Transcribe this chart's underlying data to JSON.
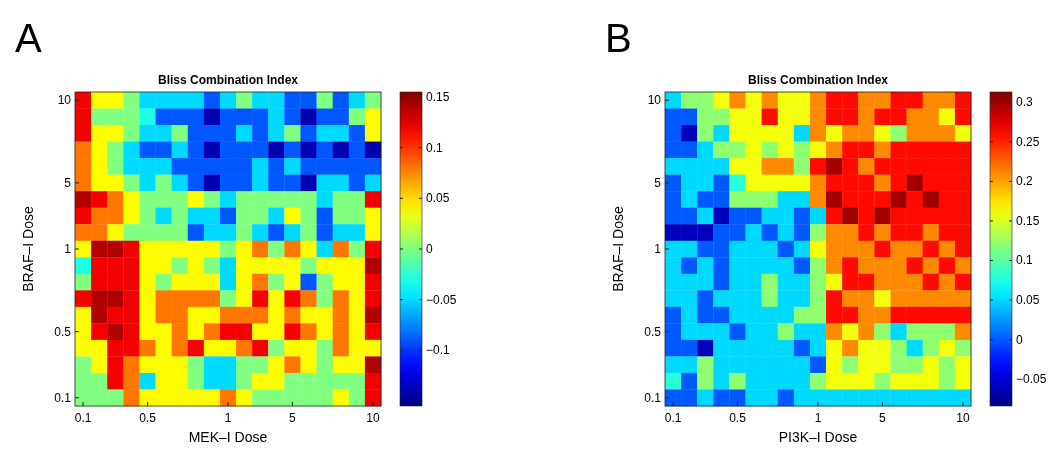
{
  "chart_data": [
    {
      "type": "heatmap",
      "title": "Bliss Combination Index",
      "xlabel": "MEK–I Dose",
      "ylabel": "BRAF–I Dose",
      "annotations": [
        "A"
      ],
      "categories": [
        "0.1",
        null,
        null,
        null,
        "0.5",
        null,
        null,
        null,
        null,
        "1",
        null,
        null,
        null,
        "5",
        null,
        null,
        null,
        null,
        "10"
      ],
      "y_categories": [
        "10",
        null,
        null,
        null,
        null,
        "5",
        null,
        null,
        null,
        "1",
        null,
        null,
        null,
        null,
        "0.5",
        null,
        null,
        null,
        "0.1"
      ],
      "clim": [
        -0.155,
        0.155
      ],
      "cticks": [
        -0.1,
        -0.05,
        0,
        0.05,
        0.1,
        0.15
      ],
      "cells": [
        [
          0.12,
          0.04,
          0.04,
          0,
          -0.05,
          -0.05,
          -0.05,
          -0.05,
          -0.09,
          -0.05,
          0,
          -0.05,
          -0.05,
          -0.09,
          -0.09,
          0,
          -0.09,
          -0.05,
          0
        ],
        [
          0.12,
          0,
          0,
          0,
          -0.03,
          -0.09,
          -0.09,
          -0.09,
          -0.14,
          -0.09,
          -0.09,
          -0.09,
          -0.05,
          -0.09,
          -0.14,
          -0.09,
          -0.09,
          0,
          0.04
        ],
        [
          0.12,
          0.04,
          0.04,
          0,
          -0.05,
          -0.05,
          0,
          -0.09,
          -0.09,
          -0.09,
          -0.05,
          -0.09,
          -0.05,
          0,
          -0.09,
          -0.05,
          -0.05,
          -0.09,
          0.04
        ],
        [
          0.08,
          0.04,
          0,
          -0.05,
          -0.09,
          -0.09,
          -0.05,
          -0.09,
          -0.14,
          -0.09,
          -0.09,
          -0.09,
          -0.14,
          -0.09,
          -0.14,
          -0.09,
          -0.14,
          -0.09,
          -0.14
        ],
        [
          0.08,
          0.04,
          0,
          -0.05,
          -0.05,
          -0.05,
          -0.09,
          -0.09,
          -0.09,
          -0.09,
          -0.09,
          -0.05,
          -0.09,
          -0.05,
          -0.09,
          -0.09,
          -0.09,
          -0.09,
          -0.09
        ],
        [
          0.08,
          0.04,
          0.04,
          0,
          -0.05,
          0,
          -0.05,
          -0.09,
          -0.14,
          -0.09,
          -0.09,
          -0.05,
          -0.09,
          -0.09,
          -0.14,
          -0.05,
          -0.05,
          -0.09,
          -0.05
        ],
        [
          0.14,
          0.12,
          0.08,
          0.04,
          0,
          0,
          0,
          0.04,
          0,
          -0.05,
          0,
          0,
          0,
          0,
          0,
          -0.05,
          0,
          0,
          0.12
        ],
        [
          0.12,
          0.08,
          0.08,
          0.04,
          0,
          -0.05,
          0,
          -0.05,
          -0.05,
          -0.09,
          0,
          0,
          -0.05,
          0.04,
          0,
          -0.09,
          0,
          0,
          0.04
        ],
        [
          0.08,
          0.08,
          0.04,
          0,
          0,
          0,
          0,
          -0.09,
          -0.05,
          -0.05,
          0,
          -0.05,
          -0.09,
          -0.05,
          0,
          -0.09,
          -0.05,
          -0.05,
          0.04
        ],
        [
          0.04,
          0.14,
          0.14,
          0.12,
          0.04,
          0.04,
          0.04,
          0.04,
          0.04,
          0,
          0.04,
          0.08,
          0,
          0.08,
          0.04,
          -0.05,
          0.08,
          0,
          0.12
        ],
        [
          -0.03,
          0.12,
          0.12,
          0.12,
          0.04,
          0.04,
          0,
          0.04,
          0,
          -0.05,
          0.04,
          0.04,
          0.04,
          0.04,
          0,
          0.04,
          0.04,
          0.04,
          0.14
        ],
        [
          0,
          0.12,
          0.12,
          0.12,
          0.04,
          0,
          0.04,
          0.04,
          0.04,
          -0.05,
          0.04,
          0.08,
          0,
          0.04,
          -0.09,
          0,
          0.04,
          0.04,
          0.12
        ],
        [
          0.12,
          0.14,
          0.14,
          0.12,
          0.04,
          0.08,
          0.08,
          0.08,
          0.08,
          0,
          0.04,
          0.12,
          0.04,
          0.12,
          0.08,
          0,
          0.08,
          0.04,
          0.12
        ],
        [
          0.04,
          0.14,
          0.12,
          0.12,
          0.04,
          0.08,
          0.08,
          0.04,
          0.04,
          0.08,
          0.08,
          0.08,
          0.04,
          0.08,
          0.04,
          0.04,
          0.08,
          0.04,
          0.14
        ],
        [
          0.04,
          0.12,
          0.14,
          0.12,
          0.04,
          0.04,
          0.08,
          0.04,
          0.08,
          0.12,
          0.12,
          0.04,
          0.04,
          0.12,
          0.08,
          0.04,
          0.08,
          0.04,
          0.12
        ],
        [
          0.04,
          0.04,
          0.12,
          0.12,
          0.08,
          0.04,
          0.08,
          0.12,
          0.04,
          0.04,
          0.08,
          0.12,
          0,
          0.04,
          0.04,
          0,
          0.08,
          0.04,
          0.04
        ],
        [
          0,
          0.04,
          0.12,
          0.08,
          0.04,
          0.04,
          0.04,
          0,
          -0.05,
          -0.05,
          0,
          0,
          0.04,
          0.08,
          0.04,
          0,
          0.04,
          0.04,
          0.14
        ],
        [
          0,
          0,
          0.12,
          0.08,
          -0.05,
          0.04,
          0.04,
          0,
          -0.05,
          -0.05,
          0,
          0.04,
          0.04,
          0,
          0,
          0,
          0,
          0,
          0.12
        ],
        [
          0,
          0,
          0,
          0.08,
          0.04,
          0.04,
          0.04,
          0.04,
          0.04,
          0.08,
          0.04,
          0,
          0,
          0,
          0,
          0,
          0.04,
          0,
          0.12
        ]
      ]
    },
    {
      "type": "heatmap",
      "title": "Bliss Combination Index",
      "xlabel": "PI3K–I Dose",
      "ylabel": "BRAF–I Dose",
      "annotations": [
        "B"
      ],
      "categories": [
        "0.1",
        null,
        null,
        null,
        "0.5",
        null,
        null,
        null,
        null,
        "1",
        null,
        null,
        null,
        "5",
        null,
        null,
        null,
        null,
        "10"
      ],
      "y_categories": [
        "10",
        null,
        null,
        null,
        null,
        "5",
        null,
        null,
        null,
        "1",
        null,
        null,
        null,
        null,
        "0.5",
        null,
        null,
        null,
        "0.1"
      ],
      "clim": [
        -0.084,
        0.313
      ],
      "cticks": [
        -0.05,
        0,
        0.05,
        0.1,
        0.15,
        0.2,
        0.25,
        0.3
      ],
      "cells": [
        [
          0.05,
          0.12,
          0.12,
          0.16,
          0.21,
          0.16,
          0.21,
          0.16,
          0.16,
          0.21,
          0.26,
          0.26,
          0.21,
          0.21,
          0.26,
          0.26,
          0.21,
          0.21,
          0.26
        ],
        [
          0,
          0,
          0.12,
          0.12,
          0.16,
          0.16,
          0.26,
          0.16,
          0.16,
          0.21,
          0.26,
          0.26,
          0.21,
          0.26,
          0.26,
          0.21,
          0.21,
          0.16,
          0.26
        ],
        [
          0,
          -0.06,
          0.12,
          0.05,
          0.16,
          0.16,
          0.16,
          0.16,
          0.05,
          0.21,
          0.16,
          0.21,
          0.21,
          0.16,
          0.12,
          0.21,
          0.21,
          0.21,
          0.16
        ],
        [
          0,
          0,
          0.05,
          0.12,
          0.12,
          0.16,
          0.12,
          0.16,
          0.12,
          0.16,
          0.21,
          0.26,
          0.26,
          0.21,
          0.26,
          0.26,
          0.26,
          0.26,
          0.26
        ],
        [
          0.05,
          0.05,
          0.05,
          0.05,
          0.16,
          0.16,
          0.21,
          0.21,
          0.12,
          0.26,
          0.3,
          0.26,
          0.21,
          0.26,
          0.26,
          0.26,
          0.26,
          0.26,
          0.26
        ],
        [
          0,
          0.05,
          0.05,
          0,
          0.08,
          0.16,
          0.16,
          0.16,
          0.16,
          0.21,
          0.26,
          0.26,
          0.26,
          0.21,
          0.26,
          0.3,
          0.26,
          0.26,
          0.26
        ],
        [
          0,
          0.05,
          0,
          0,
          0.12,
          0.12,
          0.12,
          0.05,
          0.05,
          0.21,
          0.3,
          0.26,
          0.26,
          0.26,
          0.3,
          0.26,
          0.3,
          0.26,
          0.26
        ],
        [
          0,
          0,
          0.05,
          -0.06,
          0,
          0,
          0.05,
          0.05,
          0,
          0.05,
          0.26,
          0.3,
          0.26,
          0.3,
          0.26,
          0.26,
          0.26,
          0.26,
          0.26
        ],
        [
          -0.06,
          -0.06,
          -0.06,
          0,
          0,
          0.05,
          0,
          0.05,
          0,
          0.12,
          0.21,
          0.21,
          0.26,
          0.21,
          0.26,
          0.26,
          0.21,
          0.26,
          0.26
        ],
        [
          0.05,
          0.05,
          0,
          0,
          0.05,
          0.05,
          0.05,
          0,
          0.05,
          0.16,
          0.21,
          0.21,
          0.21,
          0.26,
          0.21,
          0.21,
          0.26,
          0.21,
          0.26
        ],
        [
          0.05,
          0,
          0.05,
          0,
          0.05,
          0.05,
          0.05,
          0.05,
          0,
          0.12,
          0.21,
          0.26,
          0.21,
          0.21,
          0.21,
          0.26,
          0.21,
          0.26,
          0.21
        ],
        [
          0.05,
          0.05,
          0.05,
          0,
          0.05,
          0.05,
          0.12,
          0.05,
          0.05,
          0.12,
          0.16,
          0.26,
          0.26,
          0.21,
          0.21,
          0.21,
          0.26,
          0.21,
          0.26
        ],
        [
          0.05,
          0.05,
          0,
          0.05,
          0.05,
          0.05,
          0.12,
          0.05,
          0.05,
          0.12,
          0.26,
          0.21,
          0.21,
          0.16,
          0.21,
          0.21,
          0.21,
          0.21,
          0.21
        ],
        [
          0,
          0.05,
          0,
          0,
          0.05,
          0.05,
          0.05,
          0.05,
          0.12,
          0.12,
          0.26,
          0.26,
          0.21,
          0.21,
          0.26,
          0.26,
          0.26,
          0.26,
          0.26
        ],
        [
          0,
          0.05,
          0.05,
          0.05,
          0,
          0.05,
          0.05,
          0.12,
          0.05,
          0.05,
          0.21,
          0.16,
          0.21,
          0.12,
          0.05,
          0.12,
          0.12,
          0.12,
          0.21
        ],
        [
          0,
          0,
          -0.06,
          0.05,
          0.05,
          0.05,
          0.05,
          0.05,
          0,
          0.05,
          0.16,
          0.21,
          0.16,
          0.16,
          0.12,
          0.05,
          0.12,
          0.16,
          0.12
        ],
        [
          0.05,
          0.05,
          0.12,
          0.05,
          0.05,
          0.05,
          0.05,
          0.05,
          0.05,
          0,
          0.16,
          0.12,
          0.16,
          0.16,
          0.12,
          0.12,
          0.16,
          0.12,
          0.16
        ],
        [
          0.08,
          0,
          0.12,
          0.05,
          0.12,
          0.05,
          0.05,
          0.05,
          0.05,
          0.12,
          0.16,
          0.16,
          0.16,
          0.12,
          0.16,
          0.16,
          0.16,
          0.12,
          0.16
        ],
        [
          0,
          0,
          0.05,
          0,
          0,
          0.05,
          0.05,
          0,
          0.05,
          0.05,
          0.05,
          0.05,
          0.05,
          0.05,
          0.05,
          0.05,
          0.05,
          0.05,
          0.05
        ]
      ]
    }
  ]
}
